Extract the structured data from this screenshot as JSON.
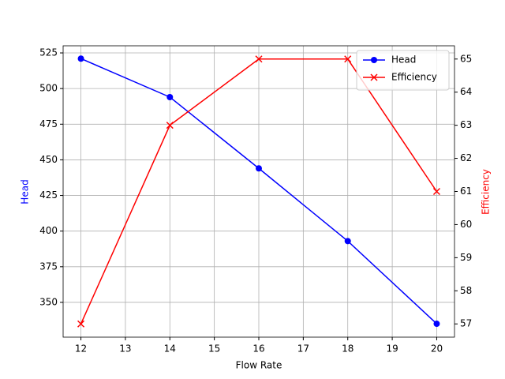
{
  "chart_data": {
    "type": "line",
    "x_label": "Flow Rate",
    "y_label": "Head",
    "y2_label": "Efficiency",
    "x": [
      12,
      14,
      16,
      18,
      20
    ],
    "series": [
      {
        "name": "Head",
        "color": "#0000ff",
        "marker": "o",
        "values": [
          521,
          494,
          444,
          393,
          335
        ]
      },
      {
        "name": "Efficiency",
        "color": "#ff0000",
        "marker": "x",
        "axis": "y2",
        "values": [
          57,
          63,
          65,
          65,
          61
        ]
      }
    ],
    "xlim": [
      11.6,
      20.4
    ],
    "xticks": [
      12,
      13,
      14,
      15,
      16,
      17,
      18,
      19,
      20
    ],
    "ylim": [
      325.6,
      530
    ],
    "yticks": [
      350,
      375,
      400,
      425,
      450,
      475,
      500,
      525
    ],
    "y2lim": [
      56.6,
      65.4
    ],
    "y2ticks": [
      57,
      58,
      59,
      60,
      61,
      62,
      63,
      64,
      65
    ],
    "grid": true,
    "legend": "upper right"
  }
}
